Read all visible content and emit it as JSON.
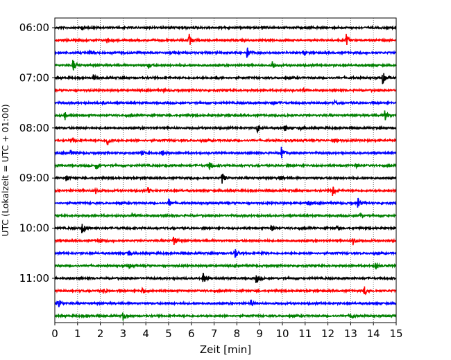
{
  "chart_data": {
    "type": "line",
    "title": "",
    "xlabel": "Zeit  [min]",
    "ylabel": "UTC (Lokalzeit = UTC + 01:00)",
    "xlim": [
      0,
      15
    ],
    "x_ticks": [
      "0",
      "1",
      "2",
      "3",
      "4",
      "5",
      "6",
      "7",
      "8",
      "9",
      "10",
      "11",
      "12",
      "13",
      "14",
      "15"
    ],
    "y_tick_labels": [
      "06:00",
      "07:00",
      "08:00",
      "09:00",
      "10:00",
      "11:00"
    ],
    "grid": "vertical-dotted",
    "legend": "none",
    "trace_colors": [
      "#000000",
      "#ff0000",
      "#0000ff",
      "#008000"
    ],
    "series": [
      {
        "start": "06:00",
        "color": "#000000",
        "events": [
          [
            1.2,
            3
          ],
          [
            5.6,
            2
          ],
          [
            9.1,
            2
          ]
        ]
      },
      {
        "start": "06:15",
        "color": "#ff0000",
        "events": [
          [
            2.3,
            5
          ],
          [
            5.9,
            9
          ],
          [
            12.8,
            9
          ]
        ]
      },
      {
        "start": "06:30",
        "color": "#0000ff",
        "events": [
          [
            1.5,
            3
          ],
          [
            8.45,
            8
          ],
          [
            10.9,
            3
          ]
        ]
      },
      {
        "start": "06:45",
        "color": "#008000",
        "events": [
          [
            0.8,
            9
          ],
          [
            4.1,
            5
          ],
          [
            9.55,
            7
          ]
        ]
      },
      {
        "start": "07:00",
        "color": "#000000",
        "events": [
          [
            1.7,
            5
          ],
          [
            7.1,
            3
          ],
          [
            14.4,
            10
          ]
        ]
      },
      {
        "start": "07:15",
        "color": "#ff0000",
        "events": [
          [
            4.8,
            2
          ],
          [
            10.9,
            3
          ]
        ]
      },
      {
        "start": "07:30",
        "color": "#0000ff",
        "events": [
          [
            2.1,
            2
          ],
          [
            9.55,
            4
          ],
          [
            12.3,
            2
          ]
        ]
      },
      {
        "start": "07:45",
        "color": "#008000",
        "events": [
          [
            0.45,
            6
          ],
          [
            10.1,
            2
          ],
          [
            14.5,
            8
          ]
        ]
      },
      {
        "start": "08:00",
        "color": "#000000",
        "events": [
          [
            8.9,
            7
          ],
          [
            10.1,
            5
          ],
          [
            10.8,
            3
          ]
        ]
      },
      {
        "start": "08:15",
        "color": "#ff0000",
        "events": [
          [
            0.8,
            3
          ],
          [
            2.3,
            9
          ],
          [
            12.3,
            4
          ]
        ]
      },
      {
        "start": "08:30",
        "color": "#0000ff",
        "events": [
          [
            0.7,
            5
          ],
          [
            3.8,
            5
          ],
          [
            4.7,
            5
          ],
          [
            9.95,
            9
          ]
        ]
      },
      {
        "start": "08:45",
        "color": "#008000",
        "events": [
          [
            1.8,
            6
          ],
          [
            6.8,
            8
          ],
          [
            13.2,
            3
          ]
        ]
      },
      {
        "start": "09:00",
        "color": "#000000",
        "events": [
          [
            0.5,
            6
          ],
          [
            7.35,
            9
          ],
          [
            9.9,
            3
          ]
        ]
      },
      {
        "start": "09:15",
        "color": "#ff0000",
        "events": [
          [
            1.8,
            4
          ],
          [
            4.1,
            5
          ],
          [
            12.2,
            9
          ]
        ]
      },
      {
        "start": "09:30",
        "color": "#0000ff",
        "events": [
          [
            5.0,
            7
          ],
          [
            11.1,
            4
          ],
          [
            13.3,
            9
          ]
        ]
      },
      {
        "start": "09:45",
        "color": "#008000",
        "events": [
          [
            3.4,
            4
          ],
          [
            13.4,
            4
          ]
        ]
      },
      {
        "start": "10:00",
        "color": "#000000",
        "events": [
          [
            1.2,
            10
          ],
          [
            9.5,
            5
          ],
          [
            12.4,
            4
          ]
        ]
      },
      {
        "start": "10:15",
        "color": "#ff0000",
        "events": [
          [
            1.9,
            5
          ],
          [
            5.2,
            8
          ],
          [
            13.1,
            6
          ]
        ]
      },
      {
        "start": "10:30",
        "color": "#0000ff",
        "events": [
          [
            3.2,
            8
          ],
          [
            7.9,
            9
          ],
          [
            9.1,
            3
          ]
        ]
      },
      {
        "start": "10:45",
        "color": "#008000",
        "events": [
          [
            3.2,
            6
          ],
          [
            14.1,
            6
          ]
        ]
      },
      {
        "start": "11:00",
        "color": "#000000",
        "events": [
          [
            6.5,
            10
          ],
          [
            8.85,
            9
          ]
        ]
      },
      {
        "start": "11:15",
        "color": "#ff0000",
        "events": [
          [
            2.1,
            4
          ],
          [
            3.8,
            5
          ],
          [
            13.6,
            7
          ]
        ]
      },
      {
        "start": "11:30",
        "color": "#0000ff",
        "events": [
          [
            0.15,
            9
          ],
          [
            8.6,
            5
          ]
        ]
      },
      {
        "start": "11:45",
        "color": "#008000",
        "events": [
          [
            1.4,
            3
          ],
          [
            3.0,
            6
          ],
          [
            13.0,
            5
          ]
        ]
      }
    ]
  }
}
